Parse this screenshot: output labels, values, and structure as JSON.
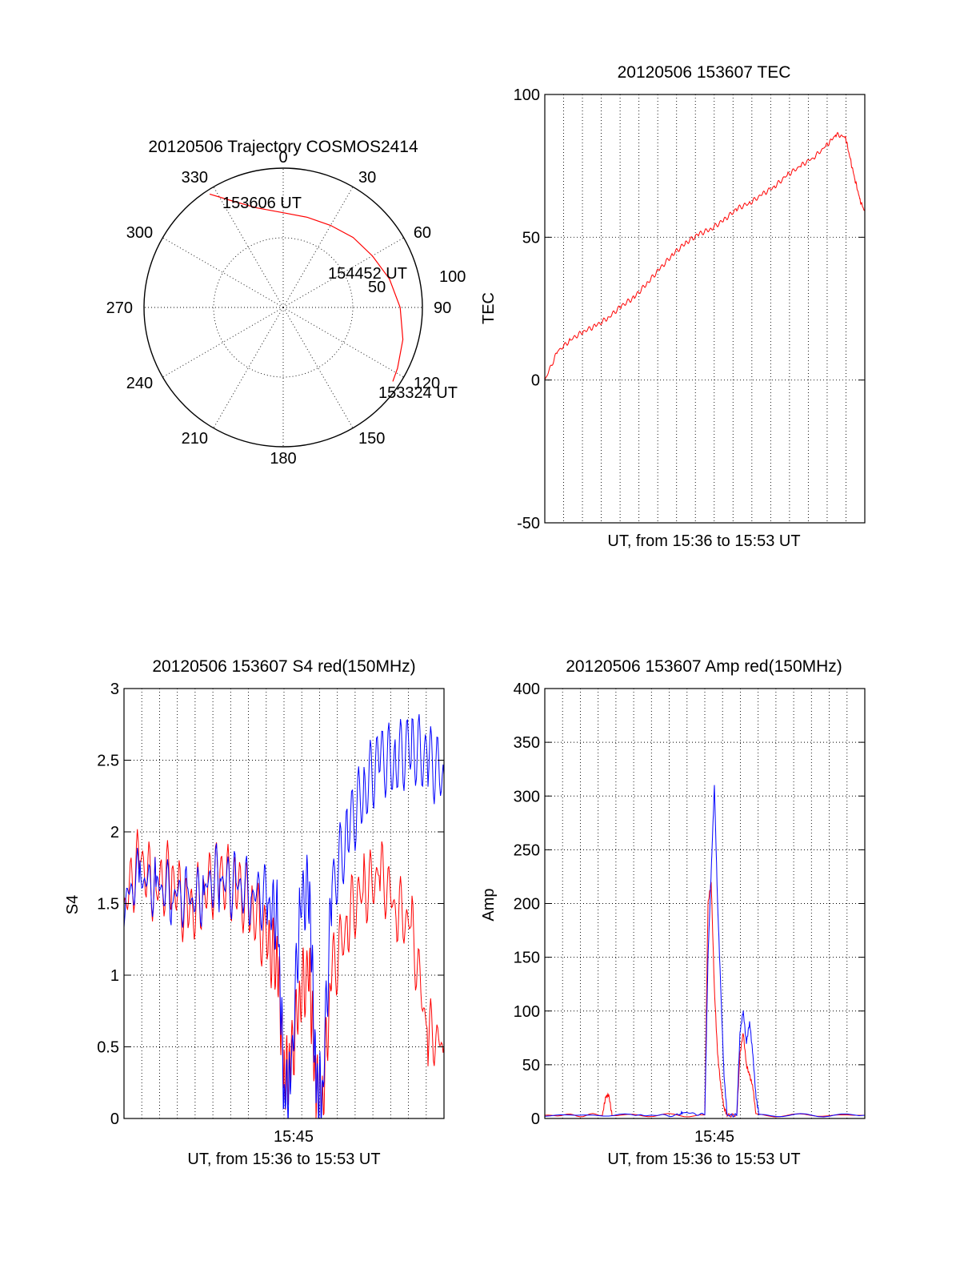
{
  "chart_data": [
    {
      "type": "polar",
      "title": "20120506 Trajectory COSMOS2414",
      "angle_labels": [
        "0",
        "30",
        "60",
        "90",
        "120",
        "150",
        "180",
        "210",
        "240",
        "270",
        "300",
        "330"
      ],
      "radius_labels": [
        "50",
        "100"
      ],
      "rlim": [
        0,
        100
      ],
      "grid": true,
      "series": [
        {
          "color": "#ff0000",
          "points": [
            {
              "az": 327,
              "zen": 97
            },
            {
              "az": 335,
              "zen": 84
            },
            {
              "az": 345,
              "zen": 74
            },
            {
              "az": 0,
              "zen": 68
            },
            {
              "az": 15,
              "zen": 67
            },
            {
              "az": 30,
              "zen": 68
            },
            {
              "az": 45,
              "zen": 71
            },
            {
              "az": 60,
              "zen": 74
            },
            {
              "az": 75,
              "zen": 79
            },
            {
              "az": 90,
              "zen": 84
            },
            {
              "az": 105,
              "zen": 89
            },
            {
              "az": 118,
              "zen": 93
            },
            {
              "az": 124,
              "zen": 95
            }
          ]
        }
      ],
      "annotations": [
        "153606 UT",
        "154452 UT",
        "153324 UT"
      ]
    },
    {
      "type": "line",
      "title": "20120506 153607 TEC",
      "xlabel": "UT, from 15:36 to 15:53 UT",
      "ylabel": "TEC",
      "ylim": [
        -50,
        100
      ],
      "y_ticks": [
        "-50",
        "0",
        "50",
        "100"
      ],
      "x_ticks": [],
      "grid": true,
      "series": [
        {
          "color": "#ff0000",
          "x": [
            0,
            0.04,
            0.08,
            0.12,
            0.16,
            0.2,
            0.24,
            0.28,
            0.32,
            0.36,
            0.4,
            0.44,
            0.48,
            0.52,
            0.56,
            0.6,
            0.64,
            0.68,
            0.72,
            0.76,
            0.8,
            0.84,
            0.88,
            0.91,
            0.94,
            0.955,
            0.97,
            0.985,
            1.0
          ],
          "y": [
            0,
            10,
            14,
            17,
            19,
            22,
            26,
            29,
            34,
            39,
            44,
            48,
            51,
            53,
            56,
            60,
            62,
            65,
            68,
            72,
            75,
            78,
            82,
            86,
            85,
            77,
            70,
            63,
            59
          ]
        }
      ]
    },
    {
      "type": "line",
      "title": "20120506 153607 S4 red(150MHz)",
      "xlabel": "UT, from 15:36 to 15:53 UT",
      "ylabel": "S4",
      "ylim": [
        0,
        3
      ],
      "y_ticks": [
        "0",
        "0.5",
        "1",
        "1.5",
        "2",
        "2.5",
        "3"
      ],
      "x_ticks": [
        "15:45"
      ],
      "grid": true,
      "series": [
        {
          "color": "#ff0000",
          "x": [
            0,
            0.05,
            0.1,
            0.15,
            0.2,
            0.25,
            0.3,
            0.35,
            0.4,
            0.45,
            0.48,
            0.5,
            0.52,
            0.55,
            0.58,
            0.6,
            0.62,
            0.65,
            0.7,
            0.75,
            0.8,
            0.85,
            0.9,
            0.95,
            1.0
          ],
          "y": [
            1.5,
            1.8,
            1.6,
            1.7,
            1.4,
            1.6,
            1.7,
            1.6,
            1.5,
            1.2,
            1.1,
            0.3,
            0.35,
            0.9,
            1.0,
            0.2,
            0.15,
            1.0,
            1.4,
            1.6,
            1.7,
            1.5,
            1.3,
            0.6,
            0.5
          ]
        },
        {
          "color": "#0000ff",
          "x": [
            0,
            0.05,
            0.1,
            0.15,
            0.2,
            0.25,
            0.3,
            0.35,
            0.4,
            0.45,
            0.48,
            0.5,
            0.52,
            0.55,
            0.58,
            0.6,
            0.62,
            0.65,
            0.7,
            0.75,
            0.8,
            0.85,
            0.9,
            0.95,
            1.0
          ],
          "y": [
            1.5,
            1.7,
            1.6,
            1.6,
            1.5,
            1.6,
            1.7,
            1.6,
            1.6,
            1.5,
            1.4,
            0.2,
            0.2,
            1.5,
            1.6,
            0.2,
            0.2,
            1.6,
            2.0,
            2.3,
            2.5,
            2.5,
            2.6,
            2.5,
            2.4
          ]
        }
      ]
    },
    {
      "type": "line",
      "title": "20120506 153607 Amp red(150MHz)",
      "xlabel": "UT, from 15:36 to 15:53 UT",
      "ylabel": "Amp",
      "ylim": [
        0,
        400
      ],
      "y_ticks": [
        "0",
        "50",
        "100",
        "150",
        "200",
        "250",
        "300",
        "350",
        "400"
      ],
      "x_ticks": [
        "15:45"
      ],
      "grid": true,
      "series": [
        {
          "color": "#ff0000",
          "x": [
            0,
            0.18,
            0.19,
            0.2,
            0.21,
            0.5,
            0.51,
            0.52,
            0.53,
            0.54,
            0.55,
            0.56,
            0.57,
            0.6,
            0.61,
            0.62,
            0.63,
            0.64,
            0.65,
            0.66,
            1.0
          ],
          "y": [
            3,
            3,
            20,
            22,
            3,
            3,
            200,
            220,
            120,
            60,
            30,
            10,
            3,
            3,
            60,
            80,
            50,
            40,
            30,
            3,
            3
          ]
        },
        {
          "color": "#0000ff",
          "x": [
            0,
            0.3,
            0.42,
            0.43,
            0.5,
            0.51,
            0.52,
            0.53,
            0.54,
            0.55,
            0.56,
            0.57,
            0.6,
            0.61,
            0.62,
            0.63,
            0.64,
            0.65,
            0.66,
            0.67,
            1.0
          ],
          "y": [
            3,
            3,
            3,
            6,
            3,
            150,
            230,
            310,
            200,
            120,
            40,
            3,
            3,
            80,
            100,
            70,
            90,
            60,
            20,
            3,
            3
          ]
        }
      ]
    }
  ]
}
